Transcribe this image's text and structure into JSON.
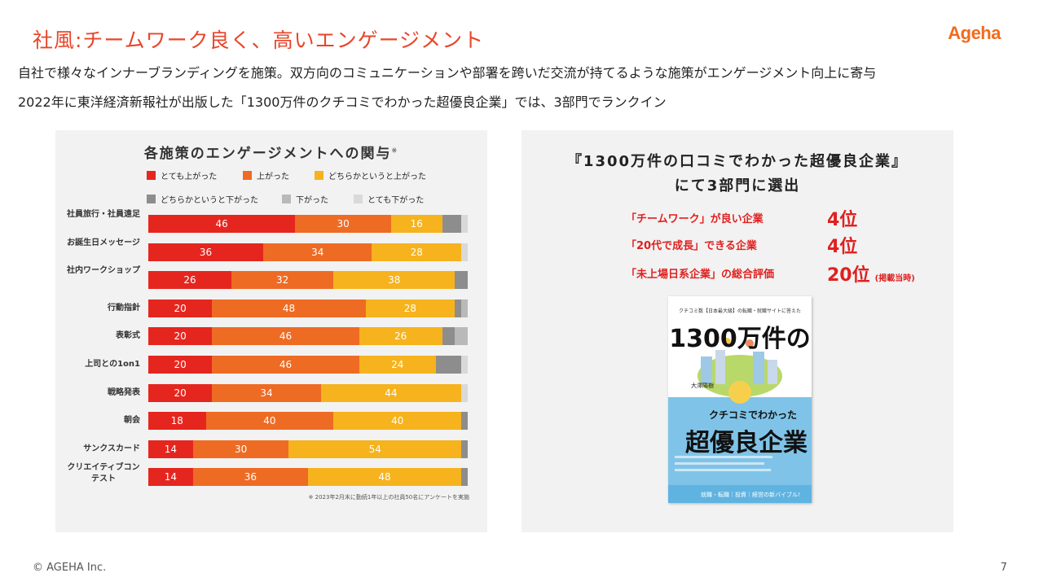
{
  "slide": {
    "title": "社風:チームワーク良く、高いエンゲージメント",
    "logo": "Ageha",
    "line1": "自社で様々なインナーブランディングを施策。双方向のコミュニケーションや部署を跨いだ交流が持てるような施策がエンゲージメント向上に寄与",
    "line2": "2022年に東洋経済新報社が出版した「1300万件のクチコミでわかった超優良企業」では、3部門でランクイン",
    "footer": "© AGEHA Inc.",
    "page_number": "7"
  },
  "chart_data": {
    "type": "bar",
    "stacked": true,
    "orientation": "horizontal",
    "title": "各施策のエンゲージメントへの関与",
    "title_mark": "※",
    "categories": [
      "社員旅行・社員遠足",
      "お誕生日メッセージ",
      "社内ワークショップ",
      "行動指針",
      "表彰式",
      "上司との1on1",
      "戦略発表",
      "朝会",
      "サンクスカード",
      "クリエイティブコンテスト"
    ],
    "series": [
      {
        "name": "とても上がった",
        "color": "#e5261f",
        "values": [
          46,
          36,
          26,
          20,
          20,
          20,
          20,
          18,
          14,
          14
        ]
      },
      {
        "name": "上がった",
        "color": "#ee6b24",
        "values": [
          30,
          34,
          32,
          48,
          46,
          46,
          34,
          40,
          30,
          36
        ]
      },
      {
        "name": "どちらかというと上がった",
        "color": "#f6b31d",
        "values": [
          16,
          28,
          38,
          28,
          26,
          24,
          44,
          40,
          54,
          48
        ]
      },
      {
        "name": "どちらかというと下がった",
        "color": "#8d8d8d",
        "values": [
          6,
          0,
          4,
          2,
          4,
          8,
          0,
          2,
          2,
          2
        ]
      },
      {
        "name": "下がった",
        "color": "#b9b9b9",
        "values": [
          0,
          0,
          0,
          2,
          4,
          0,
          0,
          0,
          0,
          0
        ]
      },
      {
        "name": "とても下がった",
        "color": "#d9d9d9",
        "values": [
          2,
          2,
          0,
          0,
          0,
          2,
          2,
          0,
          0,
          0
        ]
      }
    ],
    "xlim": [
      0,
      100
    ],
    "legend_position": "top",
    "footnote": "※ 2023年2月末に勤続1年以上の社員50名にアンケートを実施"
  },
  "awards": {
    "title_line1": "『1300万件の口コミでわかった超優良企業』",
    "title_line2": "にて3部門に選出",
    "items": [
      {
        "label": "「チームワーク」が良い企業",
        "rank": "4位",
        "note": ""
      },
      {
        "label": "「20代で成長」できる企業",
        "rank": "4位",
        "note": ""
      },
      {
        "label": "「未上場日系企業」の総合評価",
        "rank": "20位",
        "note": "(掲載当時)"
      }
    ]
  },
  "book": {
    "top_text": "クチコミ数【日本最大級】の転職・就職サイトに答えた",
    "big_title": "1300万件の",
    "sub_title": "クチコミでわかった",
    "main_title": "超優良企業",
    "author": "大澤陽樹",
    "bottom_text": "就職・転職｜投資｜経営の新バイブル!"
  }
}
